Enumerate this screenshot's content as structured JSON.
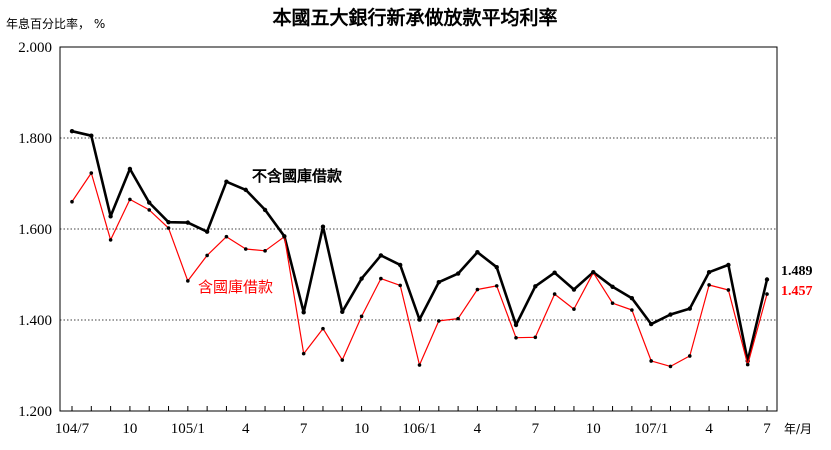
{
  "chart_data": {
    "type": "line",
    "title": "本國五大銀行新承做放款平均利率",
    "ylabel": "年息百分比率， %",
    "xlabel": "年/月",
    "ylim": [
      1.2,
      2.0
    ],
    "yticks": [
      "1.200",
      "1.400",
      "1.600",
      "1.800",
      "2.000"
    ],
    "grid": "dotted horizontal",
    "x": [
      "104/7",
      "104/8",
      "104/9",
      "104/10",
      "104/11",
      "104/12",
      "105/1",
      "105/2",
      "105/3",
      "105/4",
      "105/5",
      "105/6",
      "105/7",
      "105/8",
      "105/9",
      "105/10",
      "105/11",
      "105/12",
      "106/1",
      "106/2",
      "106/3",
      "106/4",
      "106/5",
      "106/6",
      "106/7",
      "106/8",
      "106/9",
      "106/10",
      "106/11",
      "106/12",
      "107/1",
      "107/2",
      "107/3",
      "107/4",
      "107/5",
      "107/6",
      "107/7"
    ],
    "xtick_labels": [
      {
        "index": 0,
        "label": "104/7"
      },
      {
        "index": 3,
        "label": "10"
      },
      {
        "index": 6,
        "label": "105/1"
      },
      {
        "index": 9,
        "label": "4"
      },
      {
        "index": 12,
        "label": "7"
      },
      {
        "index": 15,
        "label": "10"
      },
      {
        "index": 18,
        "label": "106/1"
      },
      {
        "index": 21,
        "label": "4"
      },
      {
        "index": 24,
        "label": "7"
      },
      {
        "index": 27,
        "label": "10"
      },
      {
        "index": 30,
        "label": "107/1"
      },
      {
        "index": 33,
        "label": "4"
      },
      {
        "index": 36,
        "label": "7"
      }
    ],
    "series": [
      {
        "name": "不含國庫借款",
        "color": "#000000",
        "values": [
          1.815,
          1.805,
          1.628,
          1.732,
          1.658,
          1.615,
          1.614,
          1.594,
          1.704,
          1.686,
          1.642,
          1.584,
          1.417,
          1.605,
          1.418,
          1.491,
          1.542,
          1.521,
          1.401,
          1.483,
          1.502,
          1.549,
          1.516,
          1.389,
          1.474,
          1.504,
          1.467,
          1.505,
          1.473,
          1.448,
          1.391,
          1.412,
          1.425,
          1.505,
          1.521,
          1.31,
          1.489
        ],
        "end_label": "1.489"
      },
      {
        "name": "含國庫借款",
        "color": "#ff0000",
        "values": [
          1.66,
          1.723,
          1.576,
          1.665,
          1.642,
          1.602,
          1.486,
          1.542,
          1.583,
          1.556,
          1.552,
          1.583,
          1.326,
          1.381,
          1.312,
          1.408,
          1.491,
          1.476,
          1.301,
          1.398,
          1.403,
          1.467,
          1.475,
          1.361,
          1.362,
          1.457,
          1.424,
          1.504,
          1.437,
          1.422,
          1.31,
          1.298,
          1.321,
          1.477,
          1.466,
          1.302,
          1.457
        ],
        "end_label": "1.457"
      }
    ]
  }
}
